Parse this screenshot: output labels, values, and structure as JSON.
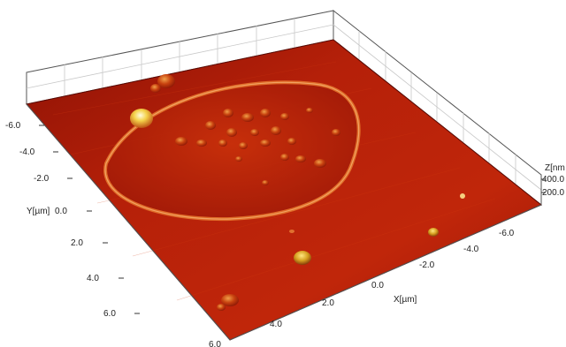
{
  "image": {
    "kind": "AFM 3D topography render",
    "colors": {
      "surface_dark": "#7a0c05",
      "surface_mid": "#b41e08",
      "surface_light": "#d8400f",
      "highlight": "#f4d24a",
      "grid": "#c8c8c8",
      "frame": "#555555"
    }
  },
  "axes": {
    "y": {
      "title": "Y[µm]",
      "ticks": [
        "-6.0",
        "-4.0",
        "-2.0",
        "0.0",
        "2.0",
        "4.0",
        "6.0"
      ]
    },
    "x": {
      "title": "X[µm]",
      "ticks": [
        "-6.0",
        "-4.0",
        "-2.0",
        "0.0",
        "2.0",
        "4.0",
        "6.0"
      ]
    },
    "z": {
      "title": "Z[nm",
      "ticks": [
        "400.0",
        "200.0"
      ]
    }
  }
}
